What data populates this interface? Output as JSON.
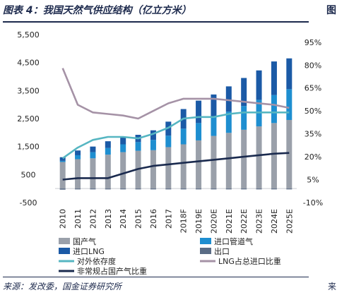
{
  "page": {
    "title": "图表 4：我国天然气供应结构（亿立方米）",
    "next_fragment": "图",
    "source": "来源：发改委，国金证券研究所",
    "next_source": "来"
  },
  "chart_data": {
    "type": "bar",
    "stacked": true,
    "categories": [
      "2010",
      "2011",
      "2012",
      "2013",
      "2014",
      "2015",
      "2016",
      "2017",
      "2018F",
      "2019E",
      "2020E",
      "2021E",
      "2022E",
      "2023E",
      "2024E",
      "2025E"
    ],
    "left_axis": {
      "min": -500,
      "max": 5500,
      "ticks": [
        -500,
        500,
        1500,
        2500,
        3500,
        4500,
        5500
      ]
    },
    "right_axis": {
      "min": -0.1,
      "max": 1.0,
      "ticks": [
        -0.1,
        0.05,
        0.2,
        0.35,
        0.5,
        0.65,
        0.8,
        0.95
      ],
      "tick_labels": [
        "-10%",
        "5%",
        "20%",
        "35%",
        "50%",
        "65%",
        "80%",
        "95%"
      ]
    },
    "series": [
      {
        "name": "国产气",
        "kind": "bar",
        "color": "#9aa0aa",
        "values": [
          950,
          1050,
          1080,
          1210,
          1300,
          1350,
          1370,
          1480,
          1580,
          1720,
          1880,
          1990,
          2100,
          2220,
          2340,
          2450
        ]
      },
      {
        "name": "进口管道气",
        "kind": "bar",
        "color": "#1e8ed0",
        "values": [
          40,
          140,
          220,
          240,
          280,
          310,
          370,
          410,
          560,
          620,
          680,
          760,
          850,
          950,
          1000,
          1100
        ]
      },
      {
        "name": "进口LNG",
        "kind": "bar",
        "color": "#1b5aa6",
        "values": [
          130,
          170,
          200,
          240,
          270,
          260,
          340,
          500,
          700,
          800,
          800,
          900,
          1000,
          1050,
          1200,
          1100
        ]
      },
      {
        "name": "出口",
        "kind": "bar",
        "color": "#5a6c85",
        "values": [
          -40,
          -30,
          -30,
          -30,
          -30,
          -30,
          -30,
          -30,
          -30,
          -30,
          -30,
          -30,
          -30,
          -30,
          -30,
          -30
        ]
      },
      {
        "name": "对外依存度",
        "kind": "line",
        "axis": "right",
        "color": "#56b6c2",
        "values": [
          0.19,
          0.26,
          0.31,
          0.33,
          0.33,
          0.32,
          0.35,
          0.39,
          0.45,
          0.46,
          0.46,
          0.48,
          0.49,
          0.49,
          0.49,
          0.49
        ]
      },
      {
        "name": "LNG占总进口比重",
        "kind": "line",
        "axis": "right",
        "color": "#a592a6",
        "values": [
          0.78,
          0.54,
          0.49,
          0.48,
          0.47,
          0.45,
          0.5,
          0.55,
          0.58,
          0.58,
          0.58,
          0.57,
          0.56,
          0.55,
          0.54,
          0.52
        ]
      },
      {
        "name": "非常规占国产气比重",
        "kind": "line",
        "axis": "right",
        "color": "#1a2a4e",
        "values": [
          0.05,
          0.06,
          0.06,
          0.06,
          0.09,
          0.12,
          0.14,
          0.15,
          0.16,
          0.17,
          0.18,
          0.19,
          0.2,
          0.21,
          0.22,
          0.225
        ]
      }
    ]
  }
}
